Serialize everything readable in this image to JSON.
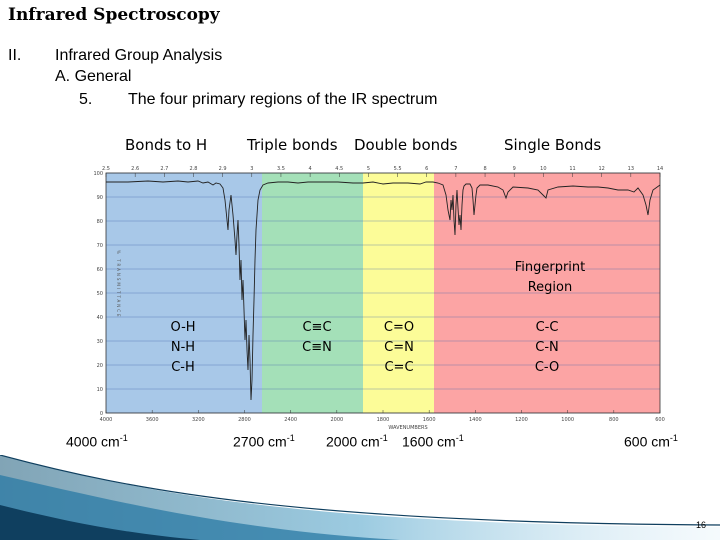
{
  "title": "Infrared Spectroscopy",
  "outline": {
    "roman": "II.",
    "heading": "Infrared Group Analysis",
    "sub_a": "A.  General",
    "item_num": "5.",
    "item_text": "The four primary regions of the IR spectrum"
  },
  "region_headers": {
    "h": "Bonds to H",
    "triple": "Triple bonds",
    "double": "Double bonds",
    "single": "Single Bonds"
  },
  "region_colors": {
    "h": "#a8c8e8",
    "triple": "#a4e0b8",
    "double": "#fcfc98",
    "single": "#fca4a4"
  },
  "bonds": {
    "h": [
      "O-H",
      "N-H",
      "C-H"
    ],
    "triple": [
      "C≡C",
      "C≡N"
    ],
    "double": [
      "C=O",
      "C=N",
      "C=C"
    ],
    "single": [
      "C-C",
      "C-N",
      "C-O"
    ]
  },
  "fingerprint": [
    "Fingerprint",
    "Region"
  ],
  "wavenumbers": [
    {
      "value": "4000 cm",
      "sup": "-1"
    },
    {
      "value": "2700 cm",
      "sup": "-1"
    },
    {
      "value": "2000 cm",
      "sup": "-1"
    },
    {
      "value": "1600 cm",
      "sup": "-1"
    },
    {
      "value": "600 cm",
      "sup": "-1"
    }
  ],
  "spectrum": {
    "top_ticks": [
      "2.5",
      "2.6",
      "2.7",
      "2.8",
      "2.9",
      "3",
      "3.5",
      "4",
      "4.5",
      "5",
      "5.5",
      "6",
      "7",
      "8",
      "9",
      "10",
      "11",
      "12",
      "13",
      "14"
    ],
    "y_ticks": [
      "100",
      "90",
      "80",
      "70",
      "60",
      "50",
      "40",
      "30",
      "20",
      "10",
      "0"
    ],
    "bottom_ticks": [
      "4000",
      "3600",
      "3200",
      "2800",
      "2400",
      "2000",
      "1800",
      "1600",
      "1400",
      "1200",
      "1000",
      "800",
      "600"
    ],
    "x_axis_label": "WAVENUMBERS",
    "y_axis_label": "% TRANSMITTANCE"
  },
  "page_number": "16"
}
